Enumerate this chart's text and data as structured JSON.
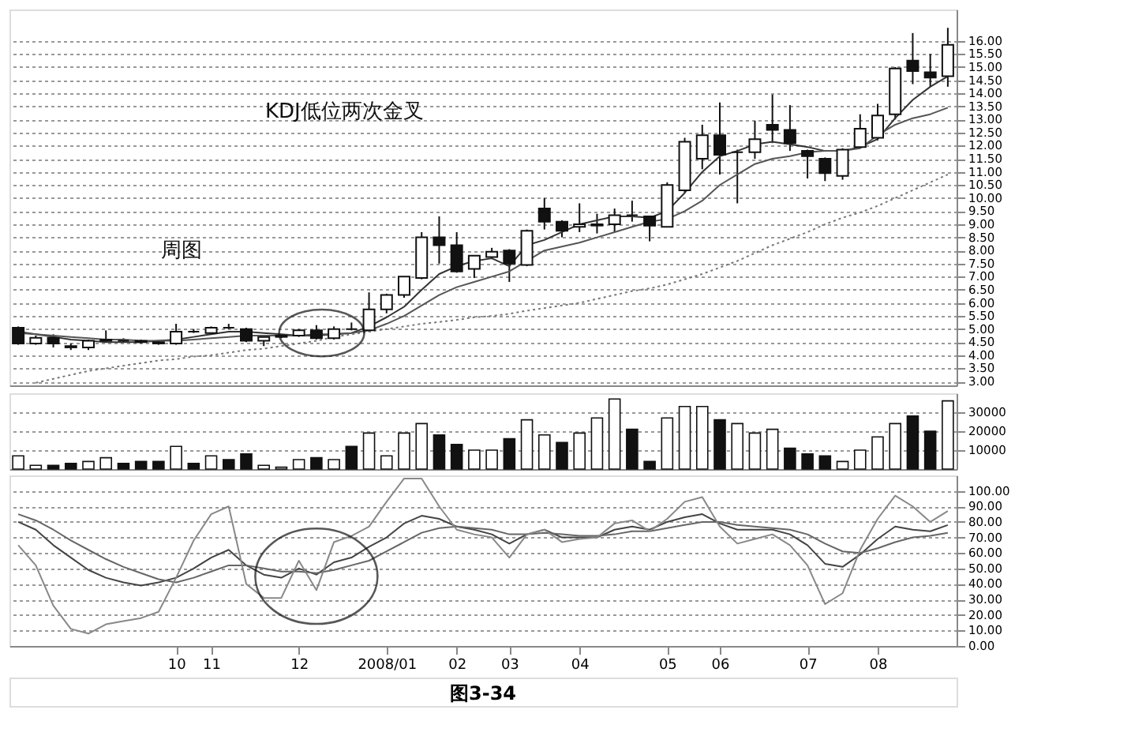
{
  "chart_data": [
    {
      "type": "candlestick",
      "categories": [
        null,
        null,
        null,
        null,
        null,
        null,
        null,
        null,
        null,
        "10",
        null,
        "11",
        null,
        null,
        null,
        null,
        "12",
        null,
        null,
        null,
        null,
        "2008/01",
        null,
        null,
        null,
        "02",
        null,
        null,
        "03",
        null,
        null,
        null,
        "04",
        null,
        null,
        null,
        null,
        "05",
        null,
        null,
        "06",
        null,
        null,
        null,
        null,
        "07",
        null,
        null,
        null,
        "08",
        null,
        null,
        null,
        null
      ],
      "ohlc": [
        [
          5.05,
          5.1,
          4.4,
          4.45
        ],
        [
          4.45,
          4.75,
          4.4,
          4.67
        ],
        [
          4.67,
          4.8,
          4.3,
          4.45
        ],
        [
          4.35,
          4.45,
          4.2,
          4.3
        ],
        [
          4.3,
          4.6,
          4.2,
          4.55
        ],
        [
          4.55,
          4.95,
          4.5,
          4.6
        ],
        [
          4.55,
          4.65,
          4.5,
          4.55
        ],
        [
          4.55,
          4.6,
          4.45,
          4.5
        ],
        [
          4.45,
          4.55,
          4.4,
          4.5
        ],
        [
          4.45,
          5.2,
          4.4,
          4.9
        ],
        [
          4.9,
          5.0,
          4.85,
          4.9
        ],
        [
          4.85,
          5.1,
          4.8,
          5.05
        ],
        [
          5.05,
          5.2,
          5.0,
          5.05
        ],
        [
          5.0,
          5.05,
          4.5,
          4.55
        ],
        [
          4.55,
          4.75,
          4.35,
          4.7
        ],
        [
          4.7,
          4.8,
          4.65,
          4.75
        ],
        [
          4.75,
          5.0,
          4.7,
          4.95
        ],
        [
          4.95,
          5.15,
          4.6,
          4.65
        ],
        [
          4.65,
          5.1,
          4.6,
          5.0
        ],
        [
          5.0,
          5.25,
          4.95,
          5.0
        ],
        [
          4.95,
          6.4,
          4.9,
          5.75
        ],
        [
          5.75,
          6.35,
          5.6,
          6.3
        ],
        [
          6.3,
          7.0,
          6.2,
          7.0
        ],
        [
          6.95,
          8.7,
          6.9,
          8.5
        ],
        [
          8.5,
          9.3,
          7.5,
          8.2
        ],
        [
          8.2,
          8.7,
          7.15,
          7.2
        ],
        [
          7.3,
          7.8,
          6.95,
          7.8
        ],
        [
          7.75,
          8.1,
          7.7,
          7.95
        ],
        [
          8.0,
          8.05,
          6.8,
          7.5
        ],
        [
          7.45,
          8.8,
          7.4,
          8.75
        ],
        [
          9.6,
          10.0,
          8.8,
          9.1
        ],
        [
          9.1,
          9.15,
          8.5,
          8.75
        ],
        [
          8.9,
          9.8,
          8.7,
          9.0
        ],
        [
          9.0,
          9.4,
          8.65,
          8.95
        ],
        [
          9.0,
          9.6,
          8.7,
          9.35
        ],
        [
          9.35,
          9.9,
          9.1,
          9.35
        ],
        [
          9.3,
          9.3,
          8.35,
          8.95
        ],
        [
          8.9,
          10.6,
          8.9,
          10.5
        ],
        [
          10.3,
          12.3,
          10.2,
          12.15
        ],
        [
          11.5,
          12.8,
          11.1,
          12.4
        ],
        [
          12.4,
          13.65,
          10.9,
          11.65
        ],
        [
          11.75,
          11.85,
          9.8,
          11.75
        ],
        [
          11.75,
          12.95,
          11.5,
          12.25
        ],
        [
          12.8,
          13.95,
          12.1,
          12.6
        ],
        [
          12.6,
          13.55,
          11.8,
          12.1
        ],
        [
          11.8,
          11.85,
          10.75,
          11.6
        ],
        [
          11.5,
          11.55,
          10.65,
          10.95
        ],
        [
          10.85,
          11.9,
          10.7,
          11.85
        ],
        [
          11.95,
          13.2,
          11.9,
          12.65
        ],
        [
          12.3,
          13.6,
          12.2,
          13.15
        ],
        [
          13.2,
          15.0,
          13.0,
          14.95
        ],
        [
          15.25,
          16.3,
          14.35,
          14.85
        ],
        [
          14.8,
          15.5,
          14.25,
          14.6
        ],
        [
          14.65,
          16.5,
          14.25,
          15.85
        ]
      ],
      "series": [
        {
          "type": "line",
          "color": "#333333",
          "line_style": "solid",
          "values": [
            4.9,
            4.8,
            4.7,
            4.6,
            4.55,
            4.5,
            4.5,
            4.5,
            4.55,
            4.6,
            4.7,
            4.8,
            4.9,
            4.9,
            4.85,
            4.8,
            4.75,
            4.75,
            4.8,
            4.85,
            5.1,
            5.45,
            5.85,
            6.5,
            7.1,
            7.4,
            7.6,
            7.7,
            7.4,
            8.2,
            8.4,
            8.7,
            9.0,
            9.15,
            9.3,
            9.3,
            9.25,
            9.5,
            10.2,
            11.0,
            11.6,
            11.8,
            12.05,
            12.15,
            12.05,
            11.95,
            11.8,
            11.8,
            11.95,
            12.25,
            13.05,
            13.75,
            14.25,
            14.65
          ]
        },
        {
          "type": "line",
          "color": "#555555",
          "line_style": "solid",
          "values": [
            4.85,
            4.8,
            4.75,
            4.7,
            4.65,
            4.6,
            4.6,
            4.55,
            4.55,
            4.55,
            4.6,
            4.65,
            4.7,
            4.75,
            4.75,
            4.75,
            4.75,
            4.8,
            4.8,
            4.85,
            4.95,
            5.2,
            5.5,
            5.9,
            6.3,
            6.6,
            6.8,
            7.0,
            7.2,
            7.6,
            8.0,
            8.15,
            8.3,
            8.5,
            8.7,
            8.9,
            9.1,
            9.2,
            9.5,
            9.9,
            10.5,
            10.9,
            11.3,
            11.5,
            11.6,
            11.75,
            11.8,
            11.8,
            11.9,
            12.4,
            12.8,
            13.05,
            13.2,
            13.45
          ]
        },
        {
          "type": "line",
          "color": "#777777",
          "line_style": "dotted",
          "values": [
            null,
            2.95,
            3.1,
            3.25,
            3.4,
            3.5,
            3.6,
            3.7,
            3.8,
            3.85,
            3.95,
            4.0,
            4.1,
            4.2,
            4.25,
            4.35,
            4.45,
            4.55,
            4.7,
            4.8,
            4.9,
            5.0,
            5.1,
            5.2,
            5.27,
            5.35,
            5.45,
            5.5,
            5.58,
            5.7,
            5.8,
            5.9,
            6.0,
            6.15,
            6.3,
            6.45,
            6.55,
            6.7,
            6.9,
            7.1,
            7.35,
            7.6,
            7.9,
            8.2,
            8.45,
            8.7,
            9.0,
            9.25,
            9.45,
            9.7,
            10.0,
            10.3,
            10.6,
            10.9
          ]
        }
      ],
      "ylim": [
        2.85,
        17.2
      ],
      "yticks": [
        {
          "value": 3,
          "label": "3.00"
        },
        {
          "value": 3.5,
          "label": "3.50"
        },
        {
          "value": 4,
          "label": "4.00"
        },
        {
          "value": 4.5,
          "label": "4.50"
        },
        {
          "value": 5,
          "label": "5.00"
        },
        {
          "value": 5.5,
          "label": "5.50"
        },
        {
          "value": 6,
          "label": "6.00"
        },
        {
          "value": 6.5,
          "label": "6.50"
        },
        {
          "value": 7,
          "label": "7.00"
        },
        {
          "value": 7.5,
          "label": "7.50"
        },
        {
          "value": 8,
          "label": "8.00"
        },
        {
          "value": 8.5,
          "label": "8.50"
        },
        {
          "value": 9,
          "label": "9.00"
        },
        {
          "value": 9.5,
          "label": "9.50"
        },
        {
          "value": 10,
          "label": "10.00"
        },
        {
          "value": 10.5,
          "label": "10.50"
        },
        {
          "value": 11,
          "label": "11.00"
        },
        {
          "value": 11.5,
          "label": "11.50"
        },
        {
          "value": 12,
          "label": "12.00"
        },
        {
          "value": 12.5,
          "label": "12.50"
        },
        {
          "value": 13,
          "label": "13.00"
        },
        {
          "value": 13.5,
          "label": "13.50"
        },
        {
          "value": 14,
          "label": "14.00"
        },
        {
          "value": 14.5,
          "label": "14.50"
        },
        {
          "value": 15,
          "label": "15.00"
        },
        {
          "value": 15.5,
          "label": "15.50"
        },
        {
          "value": 16,
          "label": "16.00"
        }
      ],
      "grid": "y",
      "tick_labels": "y",
      "annotations": [
        "KDJ低位两次金叉",
        "周图"
      ]
    },
    {
      "type": "bar",
      "categories": [
        null,
        null,
        null,
        null,
        null,
        null,
        null,
        null,
        null,
        "10",
        null,
        "11",
        null,
        null,
        null,
        null,
        "12",
        null,
        null,
        null,
        null,
        "2008/01",
        null,
        null,
        null,
        "02",
        null,
        null,
        "03",
        null,
        null,
        null,
        "04",
        null,
        null,
        null,
        null,
        "05",
        null,
        null,
        "06",
        null,
        null,
        null,
        null,
        "07",
        null,
        null,
        null,
        "08",
        null,
        null,
        null,
        null
      ],
      "values": [
        7000,
        2000,
        2000,
        3000,
        4000,
        6000,
        3000,
        4000,
        4000,
        12000,
        3000,
        7000,
        5000,
        8000,
        2000,
        1000,
        5000,
        6000,
        5000,
        12000,
        19000,
        7000,
        19000,
        24000,
        18000,
        13000,
        10000,
        10000,
        16000,
        26000,
        18000,
        14000,
        19000,
        27000,
        37000,
        21000,
        4000,
        27000,
        33000,
        33000,
        26000,
        24000,
        19000,
        21000,
        11000,
        8000,
        7000,
        4000,
        10000,
        17000,
        24000,
        28000,
        20000,
        36000
      ],
      "colors": [
        "#ffffff",
        "#ffffff",
        "#111111",
        "#111111",
        "#ffffff",
        "#ffffff",
        "#111111",
        "#111111",
        "#111111",
        "#ffffff",
        "#111111",
        "#ffffff",
        "#111111",
        "#111111",
        "#ffffff",
        "#ffffff",
        "#ffffff",
        "#111111",
        "#ffffff",
        "#111111",
        "#ffffff",
        "#ffffff",
        "#ffffff",
        "#ffffff",
        "#111111",
        "#111111",
        "#ffffff",
        "#ffffff",
        "#111111",
        "#ffffff",
        "#ffffff",
        "#111111",
        "#ffffff",
        "#ffffff",
        "#ffffff",
        "#111111",
        "#111111",
        "#ffffff",
        "#ffffff",
        "#ffffff",
        "#111111",
        "#ffffff",
        "#ffffff",
        "#ffffff",
        "#111111",
        "#111111",
        "#111111",
        "#ffffff",
        "#ffffff",
        "#ffffff",
        "#ffffff",
        "#111111",
        "#111111",
        "#ffffff"
      ],
      "ylim": [
        0,
        40000
      ],
      "yticks": [
        10000,
        20000,
        30000
      ],
      "grid": "y",
      "tick_labels": "y"
    },
    {
      "type": "line",
      "categories": [
        null,
        null,
        null,
        null,
        null,
        null,
        null,
        null,
        null,
        "10",
        null,
        "11",
        null,
        null,
        null,
        null,
        "12",
        null,
        null,
        null,
        null,
        "2008/01",
        null,
        null,
        null,
        "02",
        null,
        null,
        "03",
        null,
        null,
        null,
        "04",
        null,
        null,
        null,
        null,
        "05",
        null,
        null,
        "06",
        null,
        null,
        null,
        null,
        "07",
        null,
        null,
        null,
        "08",
        null,
        null,
        null,
        null
      ],
      "series": [
        {
          "color": "#444444",
          "values": [
            80,
            75,
            65,
            57,
            49,
            44,
            41,
            39,
            41,
            44,
            50,
            57,
            62,
            52,
            46,
            44,
            50,
            46,
            54,
            57,
            64,
            70,
            79,
            84,
            82,
            77,
            75,
            72,
            66,
            72,
            75,
            70,
            70,
            70,
            75,
            77,
            75,
            80,
            83,
            85,
            79,
            75,
            75,
            75,
            72,
            65,
            53,
            51,
            59,
            69,
            77,
            75,
            74,
            78
          ]
        },
        {
          "color": "#666666",
          "values": [
            85,
            81,
            75,
            68,
            62,
            56,
            51,
            47,
            43,
            41,
            44,
            48,
            52,
            52,
            50,
            48,
            48,
            47,
            49,
            52,
            55,
            61,
            67,
            73,
            76,
            77,
            76,
            75,
            72,
            72,
            73,
            72,
            71,
            71,
            72,
            74,
            74,
            76,
            78,
            80,
            80,
            78,
            77,
            76,
            75,
            72,
            66,
            61,
            60,
            63,
            67,
            70,
            71,
            73
          ]
        },
        {
          "color": "#888888",
          "values": [
            65,
            52,
            26,
            11,
            8,
            14,
            16,
            18,
            22,
            44,
            68,
            85,
            90,
            40,
            31,
            31,
            55,
            36,
            67,
            71,
            77,
            93,
            108,
            108,
            90,
            75,
            72,
            70,
            57,
            72,
            75,
            67,
            69,
            70,
            79,
            81,
            74,
            82,
            93,
            96,
            77,
            66,
            69,
            72,
            65,
            52,
            27,
            34,
            62,
            82,
            97,
            90,
            80,
            87
          ]
        }
      ],
      "ylim": [
        0,
        110
      ],
      "yticks": [
        {
          "value": 0,
          "label": "0.00"
        },
        {
          "value": 10,
          "label": "10.00"
        },
        {
          "value": 20,
          "label": "20.00"
        },
        {
          "value": 30,
          "label": "30.00"
        },
        {
          "value": 40,
          "label": "40.00"
        },
        {
          "value": 50,
          "label": "50.00"
        },
        {
          "value": 60,
          "label": "60.00"
        },
        {
          "value": 70,
          "label": "70.00"
        },
        {
          "value": 80,
          "label": "80.00"
        },
        {
          "value": 90,
          "label": "90.00"
        },
        {
          "value": 100,
          "label": "100.00"
        }
      ],
      "grid": "y",
      "annotations": [
        "图3-34"
      ]
    }
  ]
}
